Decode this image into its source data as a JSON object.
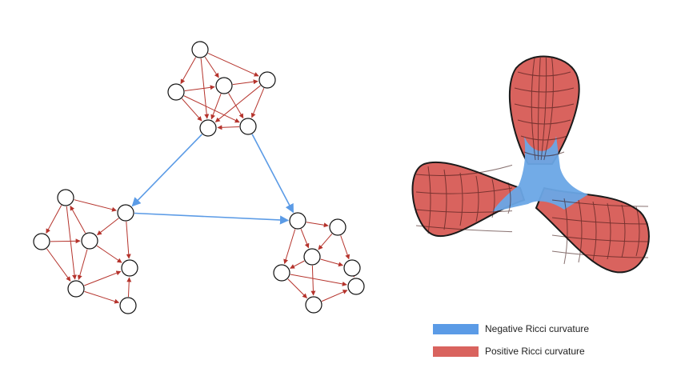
{
  "legend": {
    "negative": {
      "label": "Negative Ricci curvature",
      "color": "#5b9be6"
    },
    "positive": {
      "label": "Positive Ricci curvature",
      "color": "#d9635e"
    }
  },
  "colors": {
    "edge_intra": "#b5332c",
    "edge_inter": "#5b9be6",
    "node_fill": "#ffffff",
    "node_stroke": "#111111",
    "surface_positive": "#d9635e",
    "surface_negative": "#6aa6e6",
    "outline": "#1a1a1a"
  },
  "diagram": {
    "left": {
      "description_type": "directed-graph-with-three-communities",
      "communities": [
        "top",
        "left",
        "right"
      ]
    },
    "right": {
      "description_type": "three-lobed-surface"
    }
  }
}
